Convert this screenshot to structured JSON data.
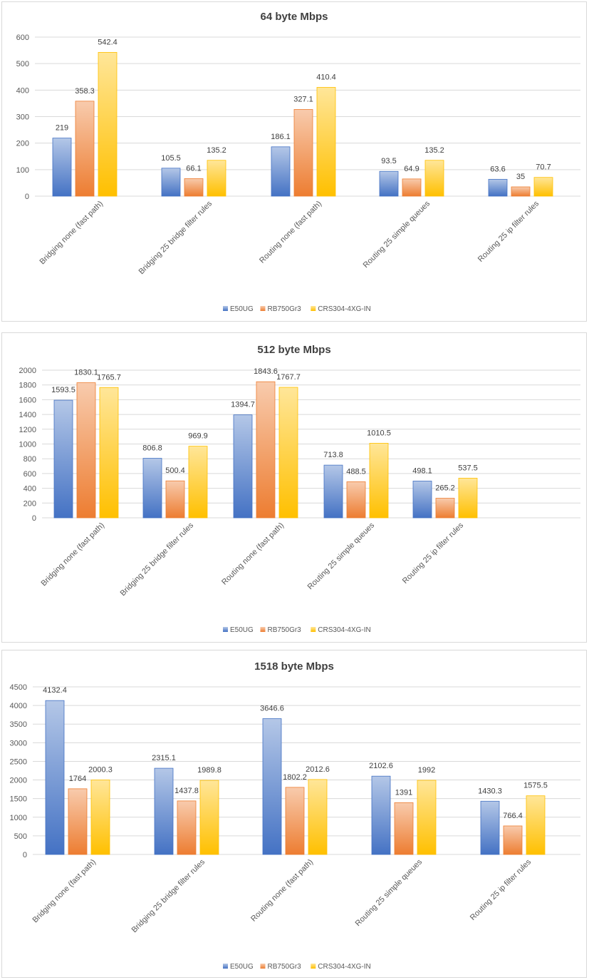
{
  "colors": {
    "E50UG": [
      "#b4c7e7",
      "#4472c4"
    ],
    "RB750Gr3": [
      "#f8cbad",
      "#ed7d31"
    ],
    "CRS304-4XG-IN": [
      "#ffe699",
      "#ffc000"
    ]
  },
  "chart_data": [
    {
      "type": "bar",
      "title": "64 byte  Mbps",
      "categories": [
        "Bridging none (fast path)",
        "Bridging 25 bridge filter rules",
        "Routing none (fast path)",
        "Routing 25 simple queues",
        "Routing 25 ip filter rules"
      ],
      "series": [
        {
          "name": "E50UG",
          "values": [
            219,
            105.5,
            186.1,
            93.5,
            63.6
          ],
          "labels": [
            "219",
            "105.5",
            "186.1",
            "93.5",
            "63.6"
          ]
        },
        {
          "name": "RB750Gr3",
          "values": [
            358.3,
            66.1,
            327.1,
            64.9,
            35
          ],
          "labels": [
            "358.3",
            "66.1",
            "327.1",
            "64.9",
            "35"
          ]
        },
        {
          "name": "CRS304-4XG-IN",
          "values": [
            542.4,
            135.2,
            410.4,
            135.2,
            70.7
          ],
          "labels": [
            "542.4",
            "135.2",
            "410.4",
            "135.2",
            "70.7"
          ]
        }
      ],
      "ylim": [
        0,
        600
      ],
      "yticks": [
        0,
        100,
        200,
        300,
        400,
        500,
        600
      ],
      "grid": true,
      "legend": "bottom"
    },
    {
      "type": "bar",
      "title": "512 byte Mbps",
      "categories": [
        "Bridging none (fast path)",
        "Bridging 25 bridge filter rules",
        "Routing none (fast path)",
        "Routing 25 simple queues",
        "Routing 25 ip filter rules"
      ],
      "series": [
        {
          "name": "E50UG",
          "values": [
            1593.5,
            806.8,
            1394.7,
            713.8,
            498.1
          ],
          "labels": [
            "1593.5",
            "806.8",
            "1394.7",
            "713.8",
            "498.1"
          ]
        },
        {
          "name": "RB750Gr3",
          "values": [
            1830.1,
            500.4,
            1843.6,
            488.5,
            265.2
          ],
          "labels": [
            "1830.1",
            "500.4",
            "1843.6",
            "488.5",
            "265.2"
          ]
        },
        {
          "name": "CRS304-4XG-IN",
          "values": [
            1765.7,
            969.9,
            1767.7,
            1010.5,
            537.5
          ],
          "labels": [
            "1765.7",
            "969.9",
            "1767.7",
            "1010.5",
            "537.5"
          ]
        }
      ],
      "ylim": [
        0,
        2000
      ],
      "yticks": [
        0,
        200,
        400,
        600,
        800,
        1000,
        1200,
        1400,
        1600,
        1800,
        2000
      ],
      "grid": true,
      "legend": "bottom"
    },
    {
      "type": "bar",
      "title": "1518 byte Mbps",
      "categories": [
        "Bridging none (fast path)",
        "Bridging 25 bridge filter rules",
        "Routing none (fast path)",
        "Routing 25 simple queues",
        "Routing 25 ip filter rules"
      ],
      "series": [
        {
          "name": "E50UG",
          "values": [
            4132.4,
            2315.1,
            3646.6,
            2102.6,
            1430.3
          ],
          "labels": [
            "4132.4",
            "2315.1",
            "3646.6",
            "2102.6",
            "1430.3"
          ]
        },
        {
          "name": "RB750Gr3",
          "values": [
            1764,
            1437.8,
            1802.2,
            1391,
            766.4
          ],
          "labels": [
            "1764",
            "1437.8",
            "1802.2",
            "1391",
            "766.4"
          ]
        },
        {
          "name": "CRS304-4XG-IN",
          "values": [
            2000.3,
            1989.8,
            2012.6,
            1992,
            1575.5
          ],
          "labels": [
            "2000.3",
            "1989.8",
            "2012.6",
            "1992",
            "1575.5"
          ]
        }
      ],
      "ylim": [
        0,
        4500
      ],
      "yticks": [
        0,
        500,
        1000,
        1500,
        2000,
        2500,
        3000,
        3500,
        4000,
        4500
      ],
      "grid": true,
      "legend": "bottom"
    }
  ]
}
